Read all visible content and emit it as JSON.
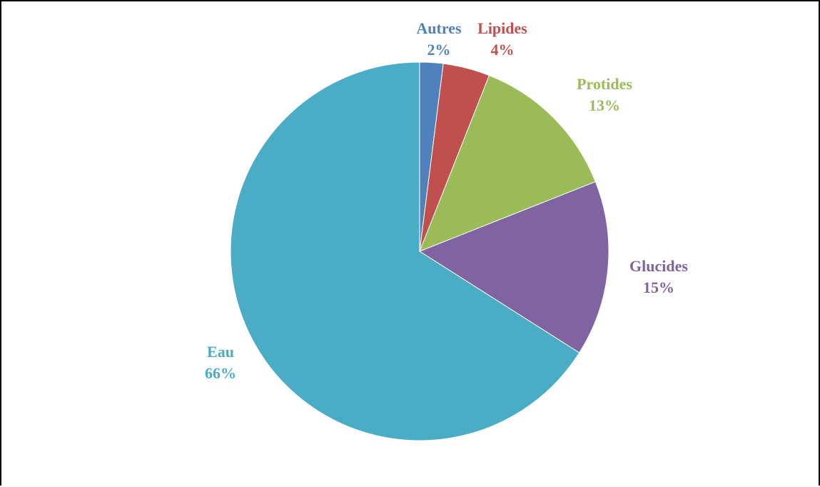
{
  "chart_data": {
    "type": "pie",
    "title": "",
    "slices": [
      {
        "label": "Autres",
        "value": 2,
        "display": "2%",
        "color": "#4F81BD"
      },
      {
        "label": "Lipides",
        "value": 4,
        "display": "4%",
        "color": "#C0504D"
      },
      {
        "label": "Protides",
        "value": 13,
        "display": "13%",
        "color": "#9BBB59"
      },
      {
        "label": "Glucides",
        "value": 15,
        "display": "15%",
        "color": "#8064A2"
      },
      {
        "label": "Eau",
        "value": 66,
        "display": "66%",
        "color": "#4BACC6"
      }
    ],
    "start": "12 o'clock",
    "direction": "clockwise",
    "legend": "none",
    "data_labels": "outside, category name and percentage"
  }
}
